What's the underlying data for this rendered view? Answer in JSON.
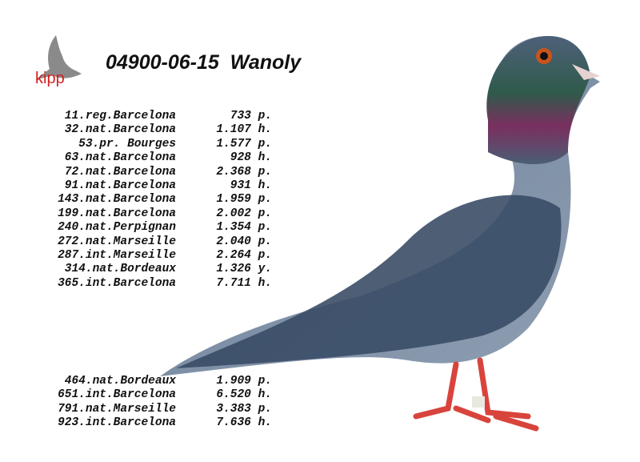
{
  "logo": {
    "text": "kipp",
    "colors": {
      "bird": "#8a8a8a",
      "text": "#d42020"
    }
  },
  "title": "04900-06-15  Wanoly",
  "results_top": [
    {
      "race": "11.reg.Barcelona",
      "value": "733 p."
    },
    {
      "race": "32.nat.Barcelona",
      "value": "1.107 h."
    },
    {
      "race": "53.pr. Bourges",
      "value": "1.577 p."
    },
    {
      "race": "63.nat.Barcelona",
      "value": "928 h."
    },
    {
      "race": "72.nat.Barcelona",
      "value": "2.368 p."
    },
    {
      "race": "91.nat.Barcelona",
      "value": "931 h."
    },
    {
      "race": "143.nat.Barcelona",
      "value": "1.959 p."
    },
    {
      "race": "199.nat.Barcelona",
      "value": "2.002 p."
    },
    {
      "race": "240.nat.Perpignan",
      "value": "1.354 p."
    },
    {
      "race": "272.nat.Marseille",
      "value": "2.040 p."
    },
    {
      "race": "287.int.Marseille",
      "value": "2.264 p."
    },
    {
      "race": "314.nat.Bordeaux",
      "value": "1.326 y."
    },
    {
      "race": "365.int.Barcelona",
      "value": "7.711 h."
    }
  ],
  "results_bottom": [
    {
      "race": "464.nat.Bordeaux",
      "value": "1.909 p."
    },
    {
      "race": "651.int.Barcelona",
      "value": "6.520 h."
    },
    {
      "race": "791.nat.Marseille",
      "value": "3.383 p."
    },
    {
      "race": "923.int.Barcelona",
      "value": "7.636 h."
    }
  ]
}
